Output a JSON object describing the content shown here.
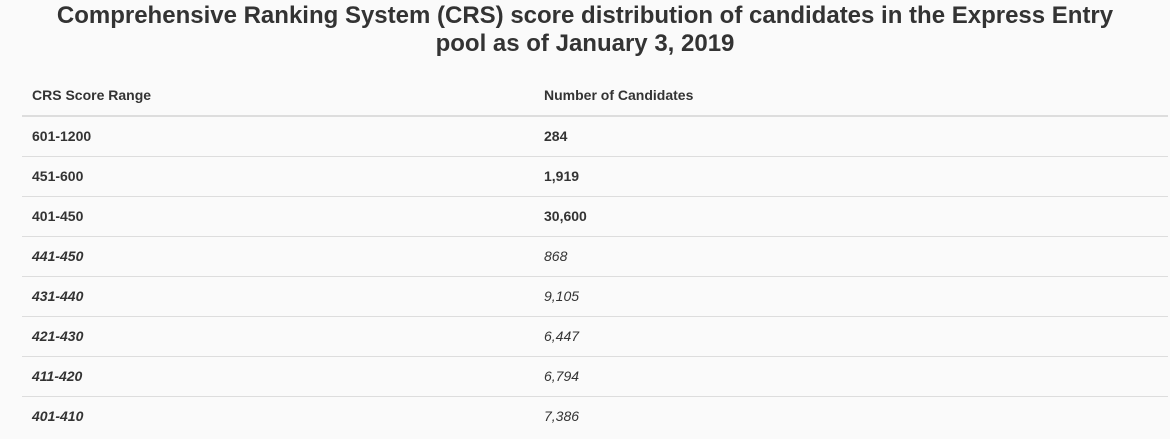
{
  "title": "Comprehensive Ranking System (CRS) score distribution of candidates in the Express Entry pool as of January 3, 2019",
  "table": {
    "headers": [
      "CRS Score Range",
      "Number of Candidates"
    ],
    "rows": [
      {
        "range": "601-1200",
        "count": "284",
        "sub": false
      },
      {
        "range": "451-600",
        "count": "1,919",
        "sub": false
      },
      {
        "range": "401-450",
        "count": "30,600",
        "sub": false
      },
      {
        "range": "441-450",
        "count": "868",
        "sub": true
      },
      {
        "range": "431-440",
        "count": "9,105",
        "sub": true
      },
      {
        "range": "421-430",
        "count": "6,447",
        "sub": true
      },
      {
        "range": "411-420",
        "count": "6,794",
        "sub": true
      },
      {
        "range": "401-410",
        "count": "7,386",
        "sub": true
      }
    ]
  }
}
